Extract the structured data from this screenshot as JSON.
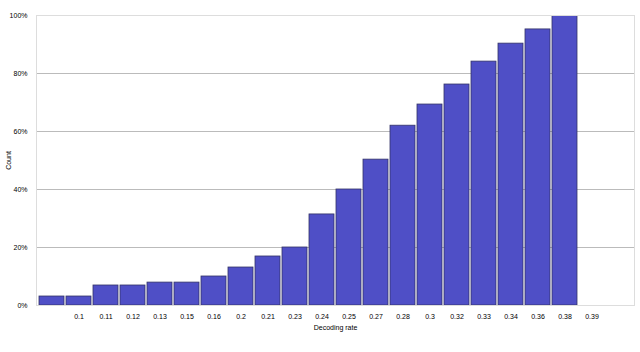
{
  "chart_data": {
    "type": "bar",
    "x_label": "Decoding rate",
    "y_label": "Count",
    "categories": [
      null,
      "0.1",
      "0.11",
      "0.12",
      "0.13",
      "0.15",
      "0.16",
      "0.2",
      "0.21",
      "0.23",
      "0.24",
      "0.25",
      "0.27",
      "0.28",
      "0.3",
      "0.32",
      "0.33",
      "0.34",
      "0.36",
      "0.38",
      "0.39",
      null
    ],
    "values": [
      3.1,
      3.1,
      6.9,
      6.9,
      7.9,
      7.9,
      10,
      13.1,
      16.9,
      20,
      31.4,
      40,
      50.3,
      62,
      69.3,
      76.2,
      84.1,
      90.3,
      95.2,
      100,
      0,
      0
    ],
    "color": "#4f4fc6",
    "ylim": [
      0,
      100
    ],
    "yticks": [
      {
        "value": 0,
        "label": "0%"
      },
      {
        "value": 20,
        "label": "20%"
      },
      {
        "value": 40,
        "label": "40%"
      },
      {
        "value": 60,
        "label": "60%"
      },
      {
        "value": 80,
        "label": "80%"
      },
      {
        "value": 100,
        "label": "100%"
      }
    ],
    "grid": true
  }
}
